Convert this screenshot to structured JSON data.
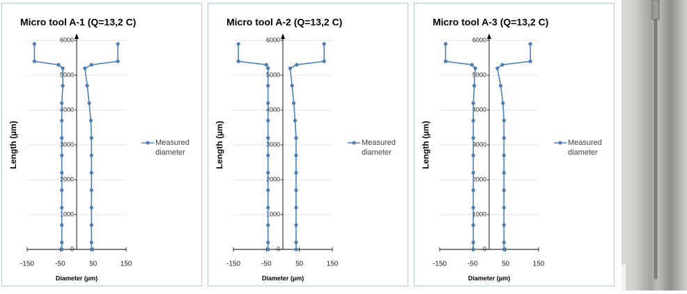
{
  "chart_data": [
    {
      "type": "line",
      "title": "Micro tool A-1 (Q=13,2 C)",
      "x_label": "Diameter (µm)",
      "y_label": "Length  (µm)",
      "xlim": [
        -150,
        150
      ],
      "ylim": [
        0,
        6000
      ],
      "xticks": [
        -150,
        -50,
        50,
        150
      ],
      "yticks": [
        0,
        1000,
        2000,
        3000,
        4000,
        5000,
        6000
      ],
      "grid": true,
      "series": [
        {
          "name": "Measured diameter",
          "color": "#4a7ebb",
          "x": [
            -128,
            -128,
            -55,
            -42,
            -42,
            -45,
            -45,
            -45,
            -45,
            -45,
            -45,
            -45,
            -45,
            -45,
            -45,
            null,
            45,
            45,
            45,
            45,
            45,
            45,
            45,
            45,
            43,
            38,
            32,
            25,
            45,
            125,
            125
          ],
          "values": [
            5900,
            5400,
            5300,
            5200,
            4700,
            4200,
            3700,
            3200,
            2700,
            2200,
            1700,
            1200,
            700,
            200,
            0,
            null,
            0,
            200,
            700,
            1200,
            1700,
            2200,
            2700,
            3200,
            3700,
            4200,
            4700,
            5200,
            5300,
            5400,
            5900
          ]
        }
      ]
    },
    {
      "type": "line",
      "title": "Micro tool A-2 (Q=13,2 C)",
      "x_label": "Diameter (µm)",
      "y_label": "Length  (µm)",
      "xlim": [
        -150,
        150
      ],
      "ylim": [
        0,
        6000
      ],
      "xticks": [
        -150,
        -50,
        50,
        150
      ],
      "yticks": [
        0,
        1000,
        2000,
        3000,
        4000,
        5000,
        6000
      ],
      "grid": true,
      "series": [
        {
          "name": "Measured diameter",
          "color": "#4a7ebb",
          "x": [
            -135,
            -135,
            -50,
            -45,
            -45,
            -45,
            -45,
            -45,
            -45,
            -45,
            -45,
            -45,
            -45,
            -45,
            -45,
            null,
            40,
            40,
            40,
            40,
            40,
            40,
            40,
            40,
            37,
            33,
            28,
            22,
            42,
            125,
            125
          ],
          "values": [
            5900,
            5400,
            5300,
            5200,
            4700,
            4200,
            3700,
            3200,
            2700,
            2200,
            1700,
            1200,
            700,
            200,
            0,
            null,
            0,
            200,
            700,
            1200,
            1700,
            2200,
            2700,
            3200,
            3700,
            4200,
            4700,
            5200,
            5300,
            5400,
            5900
          ]
        }
      ]
    },
    {
      "type": "line",
      "title": "Micro tool A-3 (Q=13,2 C)",
      "x_label": "Diameter (µm)",
      "y_label": "Length  (µm)",
      "xlim": [
        -150,
        150
      ],
      "ylim": [
        0,
        6000
      ],
      "xticks": [
        -150,
        -50,
        50,
        150
      ],
      "yticks": [
        0,
        1000,
        2000,
        3000,
        4000,
        5000,
        6000
      ],
      "grid": true,
      "series": [
        {
          "name": "Measured diameter",
          "color": "#4a7ebb",
          "x": [
            -132,
            -132,
            -52,
            -42,
            -45,
            -48,
            -48,
            -48,
            -48,
            -48,
            -48,
            -48,
            -48,
            -48,
            -48,
            null,
            45,
            45,
            45,
            45,
            45,
            45,
            45,
            45,
            45,
            42,
            35,
            25,
            40,
            125,
            125
          ],
          "values": [
            5900,
            5400,
            5300,
            5200,
            4700,
            4200,
            3700,
            3200,
            2700,
            2200,
            1700,
            1200,
            700,
            200,
            0,
            null,
            0,
            200,
            700,
            1200,
            1700,
            2200,
            2700,
            3200,
            3700,
            4200,
            4700,
            5200,
            5300,
            5400,
            5900
          ]
        }
      ]
    }
  ]
}
